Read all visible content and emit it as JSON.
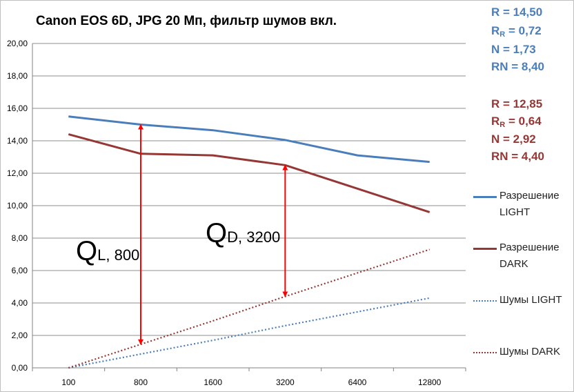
{
  "chart_data": {
    "type": "line",
    "title": "Canon EOS 6D, JPG 20 Мп, фильтр шумов вкл.",
    "categories": [
      "100",
      "800",
      "1600",
      "3200",
      "6400",
      "12800"
    ],
    "yticks": [
      "0,00",
      "2,00",
      "4,00",
      "6,00",
      "8,00",
      "10,00",
      "12,00",
      "14,00",
      "16,00",
      "18,00",
      "20,00"
    ],
    "ylim": [
      0,
      20
    ],
    "grid": true,
    "legend_position": "right",
    "series": [
      {
        "name": "Разрешение LIGHT",
        "style": "solid",
        "color": "#4a7ebb",
        "values": [
          15.5,
          15.0,
          14.65,
          14.05,
          13.1,
          12.7
        ]
      },
      {
        "name": "Разрешение DARK",
        "style": "solid",
        "color": "#953735",
        "values": [
          14.4,
          13.2,
          13.1,
          12.5,
          11.05,
          9.6
        ]
      },
      {
        "name": "Шумы LIGHT",
        "style": "dotted",
        "color": "#4a7ebb",
        "values": [
          0.0,
          0.85,
          1.7,
          2.6,
          3.45,
          4.3
        ]
      },
      {
        "name": "Шумы DARK",
        "style": "dotted",
        "color": "#953735",
        "values": [
          0.0,
          1.45,
          2.9,
          4.4,
          5.85,
          7.3
        ]
      }
    ],
    "annotations": [
      {
        "label": "Q",
        "sub": "L, 800",
        "category": "800",
        "from": 15.0,
        "to": 1.45
      },
      {
        "label": "Q",
        "sub": "D, 3200",
        "category": "3200",
        "from": 12.5,
        "to": 4.4
      }
    ]
  },
  "stats_light": {
    "color": "#4a7ebb",
    "r": "R = 14,50",
    "rr_main": "R",
    "rr_sub": "R",
    "rr_val": " = 0,72",
    "n": "N = 1,73",
    "rn": "RN = 8,40"
  },
  "stats_dark": {
    "color": "#953735",
    "r": "R = 12,85",
    "rr_main": "R",
    "rr_sub": "R",
    "rr_val": " = 0,64",
    "n": "N = 2,92",
    "rn": "RN = 4,40"
  },
  "annotation_color": "#ff0000"
}
